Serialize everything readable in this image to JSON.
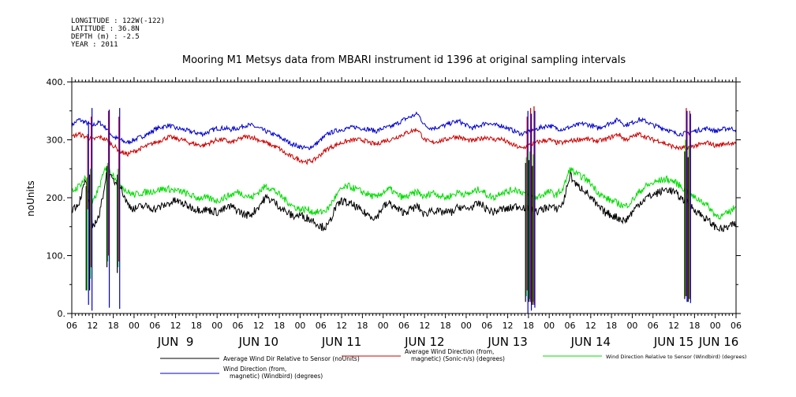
{
  "header": {
    "longitude": "LONGITUDE : 122W(-122)",
    "latitude": "LATITUDE : 36.8N",
    "depth": "DEPTH (m) : -2.5",
    "year": "YEAR : 2011"
  },
  "chart_data": {
    "type": "line",
    "title": "Mooring M1 Metsys data from MBARI instrument id 1396 at original sampling intervals",
    "ylabel": "noUnits",
    "ylim": [
      0,
      400
    ],
    "yticks": [
      0,
      100,
      200,
      300,
      400
    ],
    "ytick_labels": [
      "0.",
      "100.",
      "200.",
      "300.",
      "400."
    ],
    "x_unit": "hours since JUN 8 2011 00:00",
    "xlim": [
      6,
      198
    ],
    "hour_tick_labels": [
      "06",
      "12",
      "18",
      "00",
      "06",
      "12",
      "18",
      "00",
      "06",
      "12",
      "18",
      "00",
      "06",
      "12",
      "18",
      "00",
      "06",
      "12",
      "18",
      "00",
      "06",
      "12",
      "18",
      "00",
      "06",
      "12",
      "18",
      "00",
      "06",
      "12",
      "18",
      "00",
      "06"
    ],
    "date_labels": [
      {
        "label": "JUN  9",
        "x": 36
      },
      {
        "label": "JUN 10",
        "x": 60
      },
      {
        "label": "JUN 11",
        "x": 84
      },
      {
        "label": "JUN 12",
        "x": 108
      },
      {
        "label": "JUN 13",
        "x": 132
      },
      {
        "label": "JUN 14",
        "x": 156
      },
      {
        "label": "JUN 15",
        "x": 180
      },
      {
        "label": "JUN 16",
        "x": 193
      }
    ],
    "x": [
      6,
      8,
      10,
      12,
      14,
      16,
      18,
      20,
      22,
      24,
      26,
      28,
      30,
      32,
      34,
      36,
      38,
      40,
      42,
      44,
      46,
      48,
      50,
      52,
      54,
      56,
      58,
      60,
      62,
      64,
      66,
      68,
      70,
      72,
      74,
      76,
      78,
      80,
      82,
      84,
      86,
      88,
      90,
      92,
      94,
      96,
      98,
      100,
      102,
      104,
      106,
      108,
      110,
      112,
      114,
      116,
      118,
      120,
      122,
      124,
      126,
      128,
      130,
      132,
      134,
      136,
      138,
      140,
      142,
      144,
      146,
      148,
      150,
      152,
      154,
      156,
      158,
      160,
      162,
      164,
      166,
      168,
      170,
      172,
      174,
      176,
      178,
      180,
      182,
      184,
      186,
      188,
      190,
      192,
      194,
      196,
      198
    ],
    "series": [
      {
        "name": "Average Wind Dir Relative to Sensor (noUnits)",
        "color": "#000000",
        "values": [
          180,
          190,
          230,
          150,
          170,
          240,
          230,
          220,
          190,
          180,
          185,
          185,
          180,
          185,
          190,
          195,
          190,
          185,
          180,
          180,
          178,
          175,
          180,
          185,
          178,
          170,
          172,
          185,
          200,
          195,
          185,
          175,
          168,
          170,
          165,
          160,
          150,
          150,
          180,
          195,
          190,
          185,
          175,
          170,
          165,
          185,
          190,
          180,
          175,
          180,
          185,
          170,
          180,
          175,
          175,
          175,
          185,
          180,
          185,
          190,
          180,
          175,
          180,
          180,
          185,
          185,
          180,
          175,
          180,
          185,
          180,
          190,
          240,
          220,
          215,
          200,
          185,
          175,
          170,
          165,
          160,
          175,
          190,
          200,
          205,
          210,
          215,
          210,
          200,
          190,
          180,
          170,
          160,
          150,
          145,
          150,
          155
        ]
      },
      {
        "name": "Average Wind Direction (from, magnetic) (Sonic-n/s) (degrees)",
        "color": "#cc0000",
        "values": [
          305,
          310,
          305,
          300,
          305,
          300,
          290,
          280,
          275,
          280,
          285,
          290,
          295,
          300,
          305,
          302,
          300,
          295,
          292,
          290,
          295,
          300,
          300,
          295,
          300,
          305,
          305,
          300,
          295,
          290,
          285,
          275,
          270,
          265,
          262,
          265,
          275,
          285,
          290,
          295,
          298,
          300,
          300,
          295,
          292,
          298,
          300,
          305,
          310,
          315,
          318,
          300,
          295,
          298,
          300,
          305,
          305,
          300,
          298,
          302,
          305,
          300,
          302,
          295,
          290,
          285,
          290,
          295,
          298,
          300,
          295,
          295,
          298,
          300,
          302,
          300,
          298,
          300,
          305,
          310,
          300,
          305,
          310,
          305,
          300,
          298,
          292,
          288,
          285,
          287,
          290,
          292,
          295,
          290,
          292,
          295,
          292
        ]
      },
      {
        "name": "Wind Direction Relative to Sensor (Windbird) (degrees)",
        "color": "#00dd00",
        "values": [
          210,
          220,
          235,
          190,
          220,
          255,
          240,
          225,
          210,
          205,
          208,
          210,
          212,
          215,
          215,
          212,
          210,
          205,
          200,
          200,
          198,
          195,
          200,
          205,
          210,
          205,
          200,
          210,
          220,
          215,
          205,
          195,
          185,
          180,
          180,
          175,
          175,
          180,
          200,
          215,
          220,
          215,
          210,
          205,
          200,
          210,
          215,
          205,
          200,
          205,
          210,
          200,
          210,
          205,
          200,
          205,
          210,
          205,
          210,
          215,
          205,
          200,
          210,
          210,
          215,
          210,
          205,
          200,
          205,
          210,
          205,
          215,
          250,
          240,
          235,
          225,
          210,
          200,
          195,
          190,
          185,
          195,
          210,
          220,
          225,
          230,
          232,
          228,
          220,
          210,
          200,
          195,
          185,
          170,
          168,
          175,
          185
        ]
      },
      {
        "name": "Wind Direction (from, magnetic) (Windbird) (degrees)",
        "color": "#0000cc",
        "values": [
          325,
          335,
          330,
          325,
          330,
          320,
          305,
          300,
          295,
          300,
          305,
          310,
          318,
          322,
          325,
          320,
          318,
          315,
          312,
          310,
          315,
          320,
          320,
          318,
          320,
          325,
          325,
          320,
          315,
          310,
          305,
          298,
          292,
          288,
          285,
          290,
          300,
          310,
          315,
          318,
          320,
          322,
          320,
          318,
          315,
          320,
          322,
          328,
          335,
          340,
          345,
          325,
          320,
          322,
          325,
          330,
          332,
          325,
          320,
          325,
          330,
          325,
          325,
          320,
          315,
          310,
          315,
          318,
          322,
          325,
          320,
          318,
          322,
          325,
          328,
          325,
          320,
          325,
          330,
          335,
          325,
          330,
          335,
          332,
          325,
          322,
          318,
          312,
          310,
          312,
          315,
          318,
          320,
          315,
          318,
          320,
          318
        ]
      }
    ],
    "spikes": [
      {
        "x": 10.5,
        "red": [
          310,
          180
        ],
        "blue": [
          330,
          15
        ],
        "green": [
          235,
          40
        ],
        "black": [
          220,
          40
        ]
      },
      {
        "x": 11.5,
        "red": [
          340,
          80
        ],
        "blue": [
          355,
          5
        ],
        "green": [
          250,
          60
        ],
        "black": [
          240,
          40
        ]
      },
      {
        "x": 16.5,
        "red": [
          350,
          100
        ],
        "blue": [
          352,
          10
        ],
        "green": [
          260,
          90
        ],
        "black": [
          255,
          80
        ]
      },
      {
        "x": 19.5,
        "red": [
          340,
          90
        ],
        "blue": [
          355,
          8
        ],
        "green": [
          250,
          80
        ],
        "black": [
          240,
          70
        ]
      },
      {
        "x": 137.5,
        "red": [
          340,
          40
        ],
        "blue": [
          350,
          0
        ],
        "green": [
          270,
          30
        ],
        "black": [
          260,
          20
        ]
      },
      {
        "x": 138.5,
        "red": [
          355,
          20
        ],
        "blue": [
          345,
          5
        ],
        "green": [
          280,
          25
        ],
        "black": [
          265,
          20
        ]
      },
      {
        "x": 139.5,
        "red": [
          358,
          15
        ],
        "blue": [
          350,
          10
        ],
        "green": [
          275,
          20
        ],
        "black": [
          255,
          15
        ]
      },
      {
        "x": 183.5,
        "red": [
          355,
          30
        ],
        "blue": [
          350,
          20
        ],
        "green": [
          300,
          30
        ],
        "black": [
          280,
          25
        ]
      },
      {
        "x": 184.5,
        "red": [
          350,
          25
        ],
        "blue": [
          345,
          18
        ],
        "green": [
          290,
          25
        ],
        "black": [
          270,
          20
        ]
      }
    ],
    "legend": [
      {
        "text": "Average Wind Dir Relative to Sensor (noUnits)",
        "color": "#000000"
      },
      {
        "text": "Average Wind Direction (from,\nmagnetic) (Sonic-n/s) (degrees)",
        "color": "#cc0000"
      },
      {
        "text": "Wind Direction Relative to Sensor (Windbird) (degrees)",
        "color": "#00dd00"
      },
      {
        "text": "Wind Direction (from,\nmagnetic) (Windbird) (degrees)",
        "color": "#0000cc"
      }
    ]
  }
}
